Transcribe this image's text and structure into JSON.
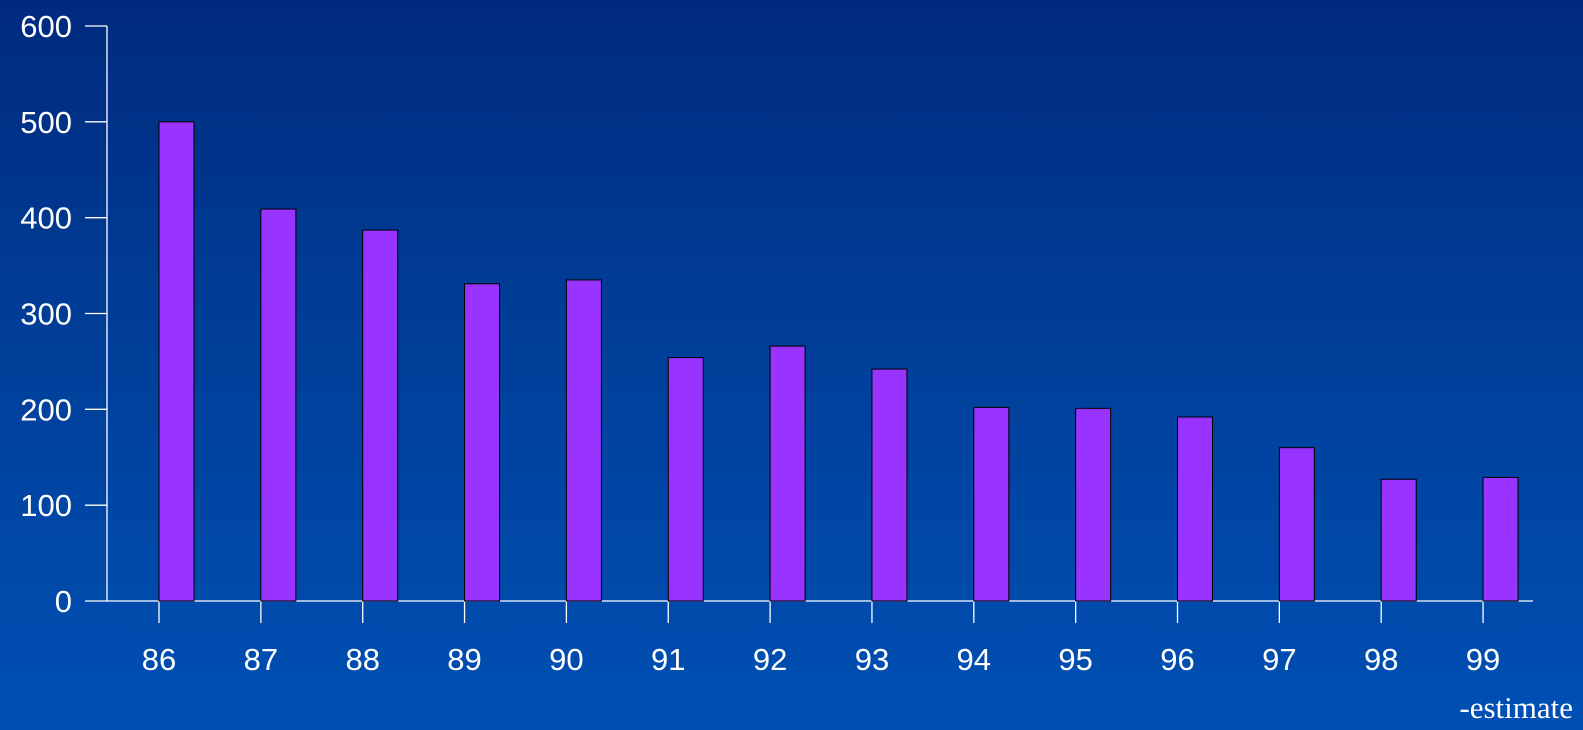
{
  "chart_data": {
    "type": "bar",
    "categories": [
      "86",
      "87",
      "88",
      "89",
      "90",
      "91",
      "92",
      "93",
      "94",
      "95",
      "96",
      "97",
      "98",
      "99"
    ],
    "values": [
      500,
      409,
      387,
      331,
      335,
      254,
      266,
      242,
      202,
      201,
      192,
      160,
      127,
      129
    ],
    "title": "",
    "xlabel": "",
    "ylabel": "",
    "ylim": [
      0,
      600
    ],
    "yticks": [
      "0",
      "100",
      "200",
      "300",
      "400",
      "500",
      "600"
    ],
    "grid": false,
    "legend": "none",
    "note": "-estimate",
    "colors": {
      "bar": "#9933ff",
      "bar_outline": "#000000",
      "axis": "#ffffff",
      "text": "#ffffff"
    }
  }
}
